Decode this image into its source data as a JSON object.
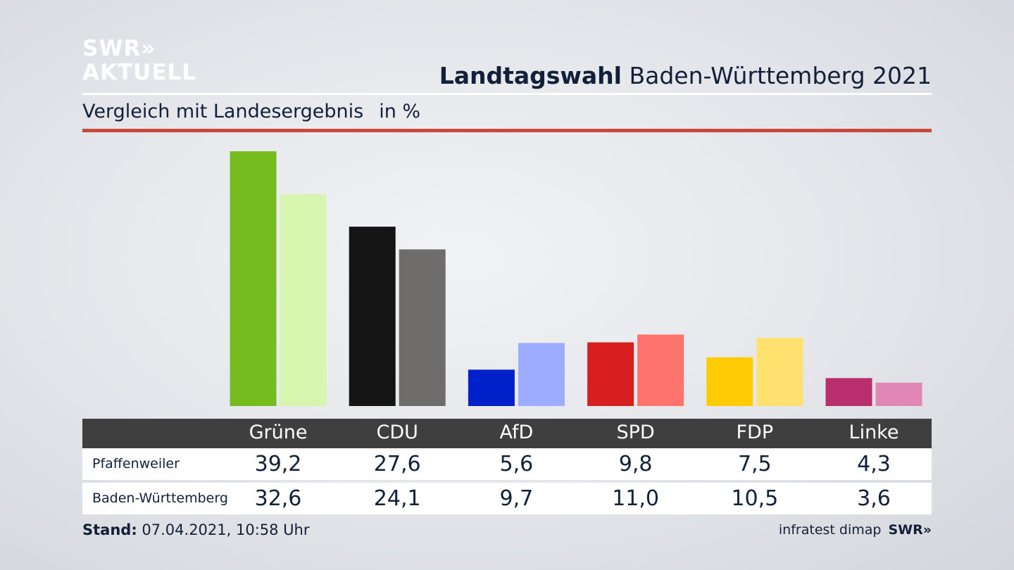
{
  "logo": {
    "line1": "SWR»",
    "line2": "AKTUELL"
  },
  "header": {
    "title_bold": "Landtagswahl",
    "title_rest": " Baden-Württemberg 2021"
  },
  "subtitle": {
    "text": "Vergleich mit Landesergebnis",
    "unit": "in %"
  },
  "colors": {
    "accent_rule": "#c8493c",
    "table_header": "#3f3f3f",
    "series_primary": [
      "#77bc1f",
      "#141414",
      "#0021c9",
      "#d71f1f",
      "#ffcb05",
      "#b92f6e"
    ],
    "series_secondary": [
      "#d6f5ae",
      "#6f6d6c",
      "#9dacfe",
      "#ff736d",
      "#ffe170",
      "#e087b5"
    ]
  },
  "chart_data": {
    "type": "bar",
    "categories": [
      "Grüne",
      "CDU",
      "AfD",
      "SPD",
      "FDP",
      "Linke"
    ],
    "series": [
      {
        "name": "Pfaffenweiler",
        "values": [
          39.2,
          27.6,
          5.6,
          9.8,
          7.5,
          4.3
        ],
        "labels": [
          "39,2",
          "27,6",
          "5,6",
          "9,8",
          "7,5",
          "4,3"
        ]
      },
      {
        "name": "Baden-Württemberg",
        "values": [
          32.6,
          24.1,
          9.7,
          11.0,
          10.5,
          3.6
        ],
        "labels": [
          "32,6",
          "24,1",
          "9,7",
          "11,0",
          "10,5",
          "3,6"
        ]
      }
    ],
    "ylim": [
      0,
      39.2
    ],
    "grid": false,
    "legend": "table-below"
  },
  "footer": {
    "stand_label": "Stand:",
    "stand_value": " 07.04.2021, 10:58 Uhr",
    "source": "infratest dimap",
    "brand": "SWR»"
  }
}
